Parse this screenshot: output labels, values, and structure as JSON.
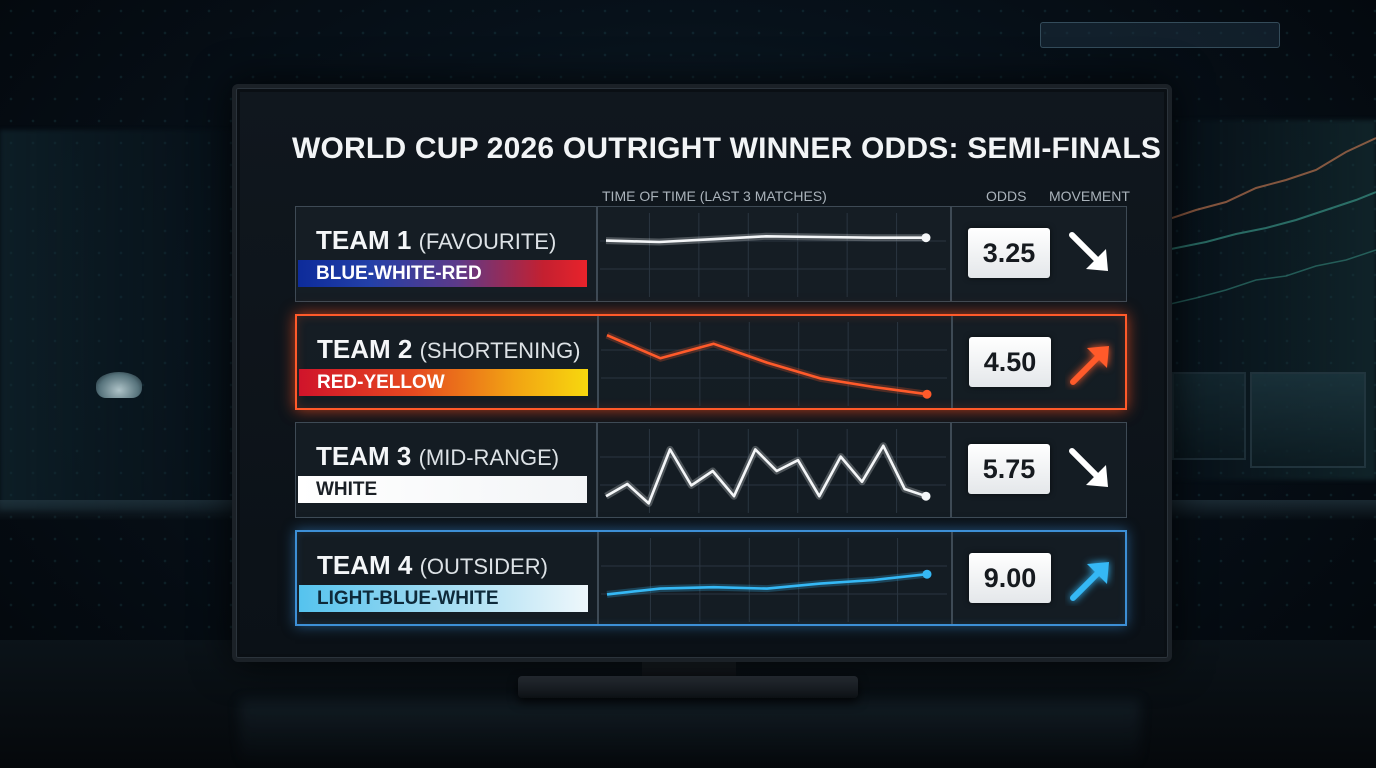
{
  "title": "WORLD CUP 2026 OUTRIGHT WINNER ODDS: SEMI-FINALS",
  "headers": {
    "time": "TIME OF TIME (LAST 3 MATCHES)",
    "odds": "ODDS",
    "movement": "MOVEMENT"
  },
  "rows": [
    {
      "team": "TEAM 1",
      "tag": "(FAVOURITE)",
      "colors": "BLUE-WHITE-RED",
      "odds": "3.25",
      "movement": "down",
      "movement_icon": "arrow-down-right-icon",
      "line_color": "#f4f6f8",
      "trend": [
        0.3,
        0.32,
        0.28,
        0.24,
        0.25,
        0.26,
        0.26
      ]
    },
    {
      "team": "TEAM 2",
      "tag": "(SHORTENING)",
      "colors": "RED-YELLOW",
      "odds": "4.50",
      "movement": "up",
      "movement_icon": "arrow-up-right-icon",
      "line_color": "#ff5a2a",
      "trend": [
        0.1,
        0.42,
        0.22,
        0.48,
        0.7,
        0.82,
        0.92
      ]
    },
    {
      "team": "TEAM 3",
      "tag": "(MID-RANGE)",
      "colors": "WHITE",
      "odds": "5.75",
      "movement": "down",
      "movement_icon": "arrow-down-right-icon",
      "line_color": "#f4f6f8",
      "trend": [
        0.85,
        0.68,
        0.95,
        0.2,
        0.7,
        0.5,
        0.85,
        0.2,
        0.5,
        0.35,
        0.85,
        0.3,
        0.65,
        0.15,
        0.75,
        0.85
      ]
    },
    {
      "team": "TEAM 4",
      "tag": "(OUTSIDER)",
      "colors": "LIGHT-BLUE-WHITE",
      "odds": "9.00",
      "movement": "up",
      "movement_icon": "arrow-up-right-icon",
      "line_color": "#35b8f5",
      "trend": [
        0.7,
        0.62,
        0.6,
        0.62,
        0.55,
        0.5,
        0.42
      ]
    }
  ]
}
